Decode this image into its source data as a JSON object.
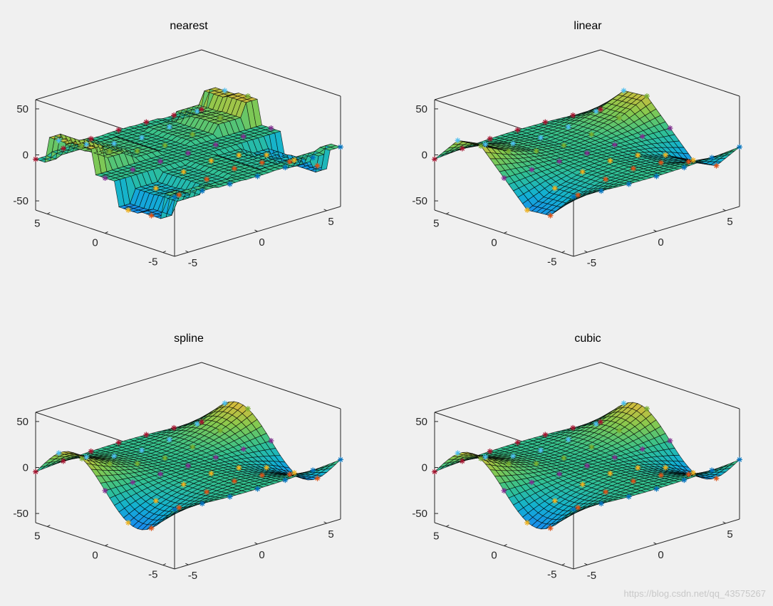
{
  "watermark": "https://blog.csdn.net/qq_43575267",
  "colors": {
    "background": "#f0f0f0",
    "axes": "#262626",
    "colormap": [
      "#3e26a8",
      "#4743f8",
      "#1a88f0",
      "#12b1d2",
      "#33c18f",
      "#87c94e",
      "#e0b93a",
      "#fdcb33",
      "#f9fb15"
    ]
  },
  "chart_data": [
    {
      "type": "surface3d",
      "title": "nearest",
      "method": "nearest",
      "x_ticks": [
        "-5",
        "0",
        "5"
      ],
      "y_ticks": [
        "-5",
        "0",
        "5"
      ],
      "z_ticks": [
        "-50",
        "0",
        "50"
      ],
      "xlim": [
        -6,
        6
      ],
      "ylim": [
        -6,
        6
      ],
      "zlim": [
        -60,
        60
      ]
    },
    {
      "type": "surface3d",
      "title": "linear",
      "method": "linear",
      "x_ticks": [
        "-5",
        "0",
        "5"
      ],
      "y_ticks": [
        "-5",
        "0",
        "5"
      ],
      "z_ticks": [
        "-50",
        "0",
        "50"
      ],
      "xlim": [
        -6,
        6
      ],
      "ylim": [
        -6,
        6
      ],
      "zlim": [
        -60,
        60
      ]
    },
    {
      "type": "surface3d",
      "title": "spline",
      "method": "spline",
      "x_ticks": [
        "-5",
        "0",
        "5"
      ],
      "y_ticks": [
        "-5",
        "0",
        "5"
      ],
      "z_ticks": [
        "-50",
        "0",
        "50"
      ],
      "xlim": [
        -6,
        6
      ],
      "ylim": [
        -6,
        6
      ],
      "zlim": [
        -60,
        60
      ]
    },
    {
      "type": "surface3d",
      "title": "cubic",
      "method": "cubic",
      "x_ticks": [
        "-5",
        "0",
        "5"
      ],
      "y_ticks": [
        "-5",
        "0",
        "5"
      ],
      "z_ticks": [
        "-50",
        "0",
        "50"
      ],
      "xlim": [
        -6,
        6
      ],
      "ylim": [
        -6,
        6
      ],
      "zlim": [
        -60,
        60
      ]
    }
  ]
}
